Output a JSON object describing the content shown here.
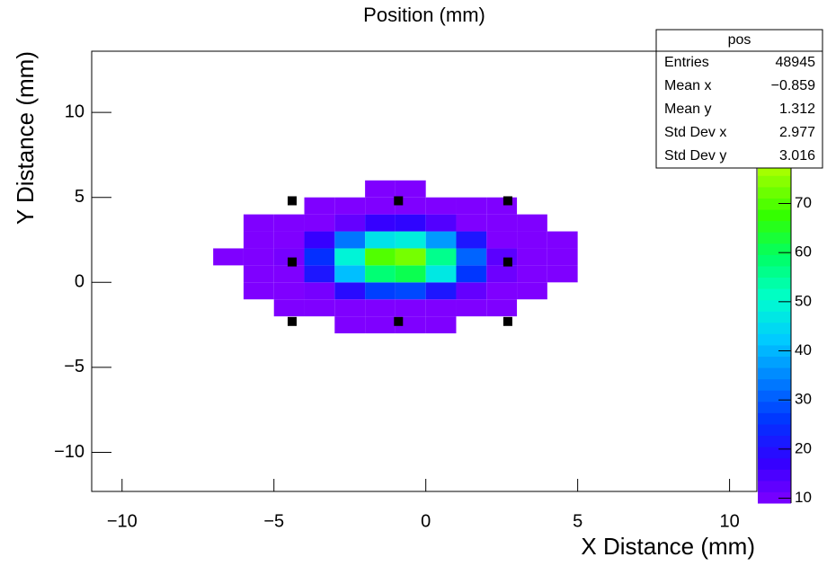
{
  "chart_data": {
    "type": "heatmap2d",
    "title": "Position (mm)",
    "x_label": "X Distance (mm)",
    "y_label": "Y Distance (mm)",
    "xlim": [
      -11,
      10.9
    ],
    "ylim": [
      -12.3,
      13.6
    ],
    "xticks": [
      {
        "value": -10,
        "label": "−10"
      },
      {
        "value": -5,
        "label": "−5"
      },
      0,
      5,
      10
    ],
    "yticks": [
      {
        "value": -10,
        "label": "−10"
      },
      {
        "value": -5,
        "label": "−5"
      },
      0,
      5,
      10
    ],
    "xbins": [
      -8,
      -7,
      -6,
      -5,
      -4,
      -3,
      -2,
      -1,
      0,
      1,
      2,
      3,
      4,
      5,
      6
    ],
    "ybins": [
      -3,
      -2,
      -1,
      0,
      1,
      2,
      3,
      4,
      5,
      6
    ],
    "values": [
      [
        null,
        null,
        null,
        null,
        null,
        9,
        9,
        9,
        9,
        null,
        null,
        null,
        null,
        null
      ],
      [
        null,
        null,
        null,
        9,
        9,
        9,
        9,
        9,
        9,
        9,
        9,
        null,
        null,
        null
      ],
      [
        null,
        null,
        9,
        9,
        10,
        19,
        27,
        28,
        21,
        12,
        9,
        9,
        null,
        null
      ],
      [
        null,
        null,
        9,
        9,
        21,
        41,
        58,
        61,
        47,
        26,
        11,
        9,
        9,
        null
      ],
      [
        null,
        9,
        9,
        10,
        25,
        49,
        70,
        73,
        56,
        31,
        13,
        9,
        9,
        null
      ],
      [
        null,
        null,
        9,
        9,
        17,
        33,
        46,
        48,
        37,
        21,
        9,
        9,
        9,
        null
      ],
      [
        null,
        null,
        9,
        9,
        9,
        12,
        17,
        18,
        14,
        9,
        9,
        9,
        null,
        null
      ],
      [
        null,
        null,
        null,
        null,
        9,
        9,
        9,
        9,
        9,
        9,
        9,
        null,
        null,
        null
      ],
      [
        null,
        null,
        null,
        null,
        null,
        null,
        9,
        9,
        null,
        null,
        null,
        null,
        null,
        null
      ]
    ],
    "zlim": [
      9,
      101
    ],
    "zticks": [
      10,
      20,
      30,
      40,
      50,
      60,
      70
    ],
    "palette": [
      "#7f00ff",
      "#3300ff",
      "#0033ff",
      "#0080ff",
      "#00ccff",
      "#00ffcc",
      "#00ff66",
      "#33ff00",
      "#99ff00",
      "#ffff00",
      "#ff9900",
      "#ff0000"
    ],
    "points": {
      "color": "#000000",
      "x": [
        -4.4,
        -0.9,
        2.7,
        -4.4,
        2.7,
        -4.4,
        -0.9,
        2.7
      ],
      "y": [
        4.8,
        4.8,
        4.8,
        1.2,
        1.2,
        -2.3,
        -2.3,
        -2.3
      ]
    },
    "stats": {
      "title": "pos",
      "rows": [
        [
          "Entries",
          "48945"
        ],
        [
          "Mean x",
          "−0.859"
        ],
        [
          "Mean y",
          "1.312"
        ],
        [
          "Std Dev x",
          "2.977"
        ],
        [
          "Std Dev y",
          "3.016"
        ]
      ]
    }
  }
}
